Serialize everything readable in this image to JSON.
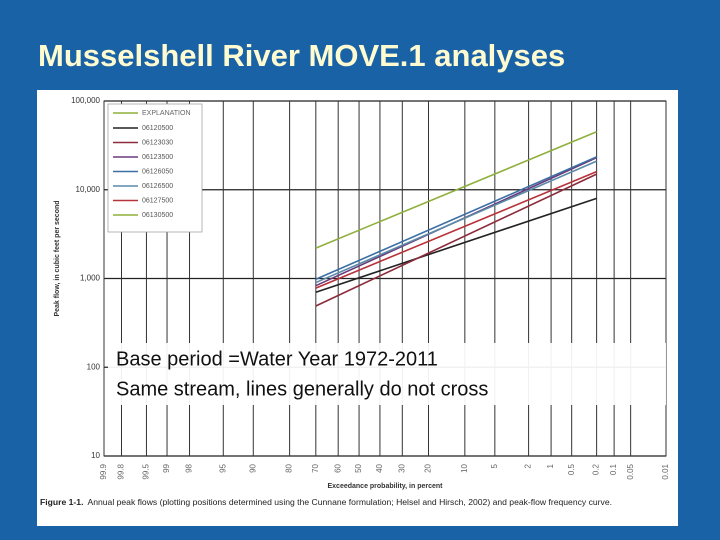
{
  "slide_title": "Musselshell River MOVE.1 analyses",
  "chart_data": {
    "type": "line",
    "y_label": "Peak flow, in cubic feet per second",
    "x_label": "Exceedance probability, in percent",
    "legend_title": "EXPLANATION",
    "caption_label": "Figure 1-1.",
    "caption_text": "Annual peak flows (plotting positions determined using the Cunnane formulation; Helsel and Hirsch, 2002) and peak-flow frequency curve.",
    "annotations": [
      "Base period =Water Year 1972-2011",
      "Same stream, lines generally do not cross"
    ],
    "y_log": true,
    "x_scale": "probability",
    "grid": true,
    "ylim": [
      10,
      100000
    ],
    "yticks": [
      {
        "value": 100000,
        "label": "100,000"
      },
      {
        "value": 10000,
        "label": "10,000"
      },
      {
        "value": 1000,
        "label": "1,000"
      },
      100,
      10
    ],
    "xlim": [
      99.9,
      0.01
    ],
    "xticks": [
      99.9,
      99.8,
      99.5,
      99,
      98,
      95,
      90,
      80,
      70,
      60,
      50,
      40,
      30,
      20,
      10,
      5,
      2,
      1,
      0.5,
      0.2,
      0.1,
      0.05,
      0.01
    ],
    "x": [
      70,
      0.2
    ],
    "series": [
      {
        "name": "06120500",
        "color": "#222222",
        "values": [
          700,
          8000
        ]
      },
      {
        "name": "06123030",
        "color": "#8b2b3b",
        "values": [
          490,
          15000
        ]
      },
      {
        "name": "06123500",
        "color": "#6b3a7a",
        "values": [
          830,
          23000
        ]
      },
      {
        "name": "06126050",
        "color": "#3b6fa5",
        "values": [
          980,
          23500
        ]
      },
      {
        "name": "06126500",
        "color": "#5a8aa8",
        "values": [
          900,
          21000
        ]
      },
      {
        "name": "06127500",
        "color": "#b8323a",
        "values": [
          780,
          16000
        ]
      },
      {
        "name": "06130500",
        "color": "#8fb03c",
        "values": [
          2200,
          45000
        ]
      }
    ]
  }
}
